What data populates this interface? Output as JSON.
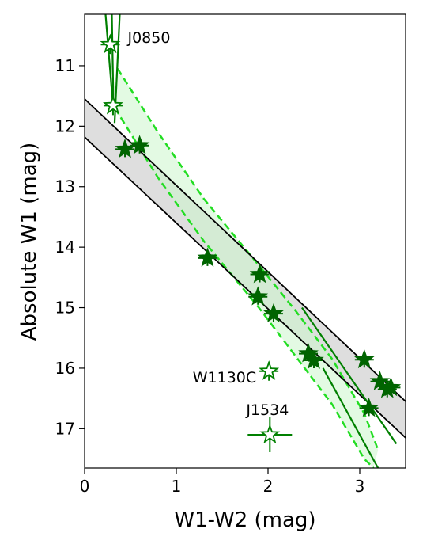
{
  "chart_data": {
    "type": "scatter",
    "xlabel": "W1-W2 (mag)",
    "ylabel": "Absolute W1 (mag)",
    "xlim": [
      0,
      3.5
    ],
    "ylim": [
      17.65,
      10.15
    ],
    "y_inverted": true,
    "xticks": [
      0,
      1,
      2,
      3
    ],
    "yticks": [
      11,
      12,
      13,
      14,
      15,
      16,
      17
    ],
    "grid": false,
    "colors": {
      "dark_green": "#006400",
      "green": "#008000",
      "band_gray_fill": "#d0d0d0",
      "band_green_fill": "#ccf5cc",
      "dashed_green": "#22dd22",
      "black": "#000000"
    },
    "gray_band": {
      "upper_line": [
        [
          0,
          11.55
        ],
        [
          3.5,
          16.55
        ]
      ],
      "lower_line": [
        [
          0,
          12.18
        ],
        [
          3.5,
          17.15
        ]
      ]
    },
    "green_band": {
      "dashed_left": [
        [
          0.36,
          11.05
        ],
        [
          0.8,
          12.1
        ],
        [
          1.3,
          13.2
        ],
        [
          1.9,
          14.3
        ],
        [
          2.3,
          15.05
        ],
        [
          2.7,
          15.85
        ],
        [
          3.05,
          16.75
        ],
        [
          3.2,
          17.35
        ]
      ],
      "dashed_right": [
        [
          0.33,
          11.7
        ],
        [
          0.8,
          12.85
        ],
        [
          1.3,
          13.9
        ],
        [
          1.9,
          15.0
        ],
        [
          2.3,
          15.8
        ],
        [
          2.7,
          16.6
        ],
        [
          3.05,
          17.5
        ],
        [
          3.15,
          17.65
        ]
      ]
    },
    "green_lines": [
      {
        "points": [
          [
            2.37,
            15.0
          ],
          [
            3.4,
            17.25
          ]
        ]
      },
      {
        "points": [
          [
            2.6,
            16.0
          ],
          [
            3.2,
            17.65
          ]
        ]
      }
    ],
    "filled_stars": [
      {
        "x": 0.44,
        "y": 12.38
      },
      {
        "x": 0.6,
        "y": 12.32
      },
      {
        "x": 1.34,
        "y": 14.18
      },
      {
        "x": 1.91,
        "y": 14.45
      },
      {
        "x": 1.89,
        "y": 14.82
      },
      {
        "x": 2.06,
        "y": 15.1
      },
      {
        "x": 2.44,
        "y": 15.76
      },
      {
        "x": 2.5,
        "y": 15.87
      },
      {
        "x": 3.05,
        "y": 15.86
      },
      {
        "x": 3.22,
        "y": 16.22
      },
      {
        "x": 3.3,
        "y": 16.35
      },
      {
        "x": 3.34,
        "y": 16.32
      },
      {
        "x": 3.1,
        "y": 16.66
      }
    ],
    "open_stars": [
      {
        "name": "J0850",
        "x": 0.28,
        "y": 10.65
      },
      {
        "x": 0.31,
        "y": 11.66
      },
      {
        "name": "W1130C",
        "x": 2.01,
        "y": 16.05
      },
      {
        "name": "J1534",
        "x": 2.02,
        "y": 17.1
      }
    ],
    "labels": [
      "J0850",
      "W1130C",
      "J1534"
    ]
  }
}
